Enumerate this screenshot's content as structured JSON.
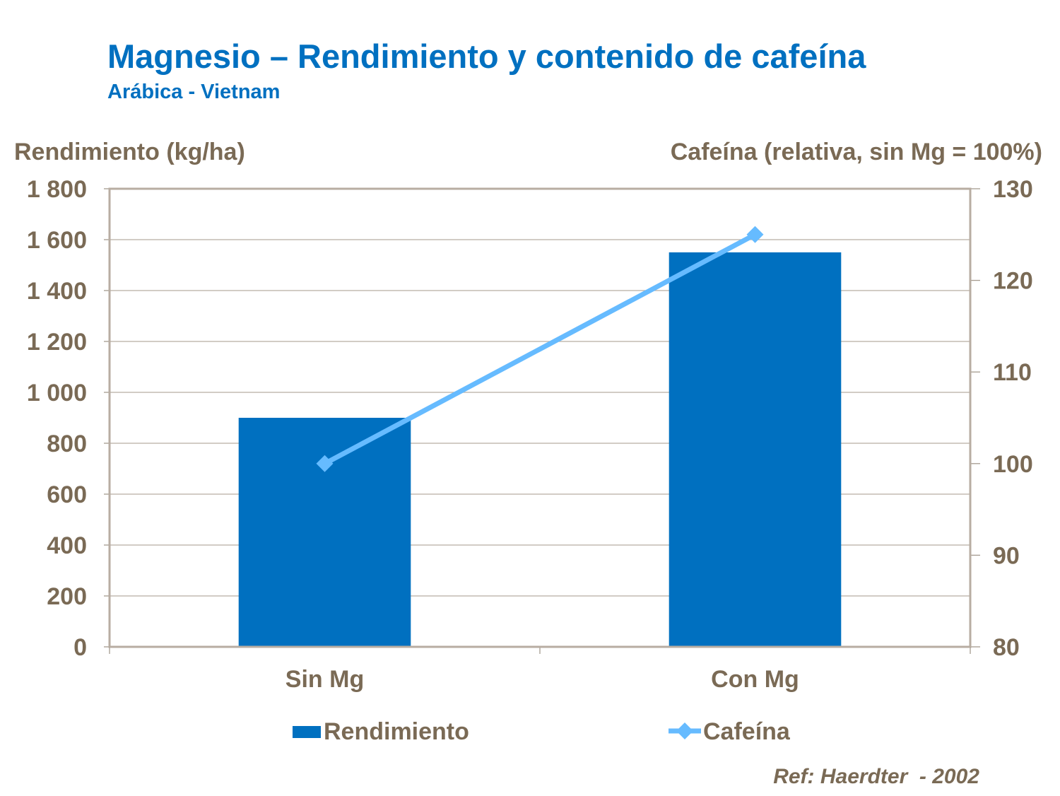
{
  "chart_data": {
    "type": "bar+line",
    "title": "Magnesio – Rendimiento y contenido de cafeína",
    "subtitle": "Arábica  - Vietnam",
    "categories": [
      "Sin Mg",
      "Con Mg"
    ],
    "series": [
      {
        "name": "Rendimiento",
        "type": "bar",
        "axis": "left",
        "values": [
          900,
          1550
        ],
        "color": "#0070C0"
      },
      {
        "name": "Cafeína",
        "type": "line",
        "axis": "right",
        "values": [
          100,
          125
        ],
        "color": "#66BBFF",
        "marker": "diamond"
      }
    ],
    "ylabel": "Rendimiento (kg/ha)",
    "ylabel_right": "Cafeína (relativa, sin Mg = 100%)",
    "ylim": [
      0,
      1800
    ],
    "ylim_right": [
      80,
      130
    ],
    "yticks": [
      "0",
      "200",
      "400",
      "600",
      "800",
      "1 000",
      "1 200",
      "1 400",
      "1 600",
      "1 800"
    ],
    "yticks_right": [
      "80",
      "90",
      "100",
      "110",
      "120",
      "130"
    ],
    "grid": true,
    "legend": "bottom",
    "source": "Ref: Haerdter  - 2002"
  }
}
